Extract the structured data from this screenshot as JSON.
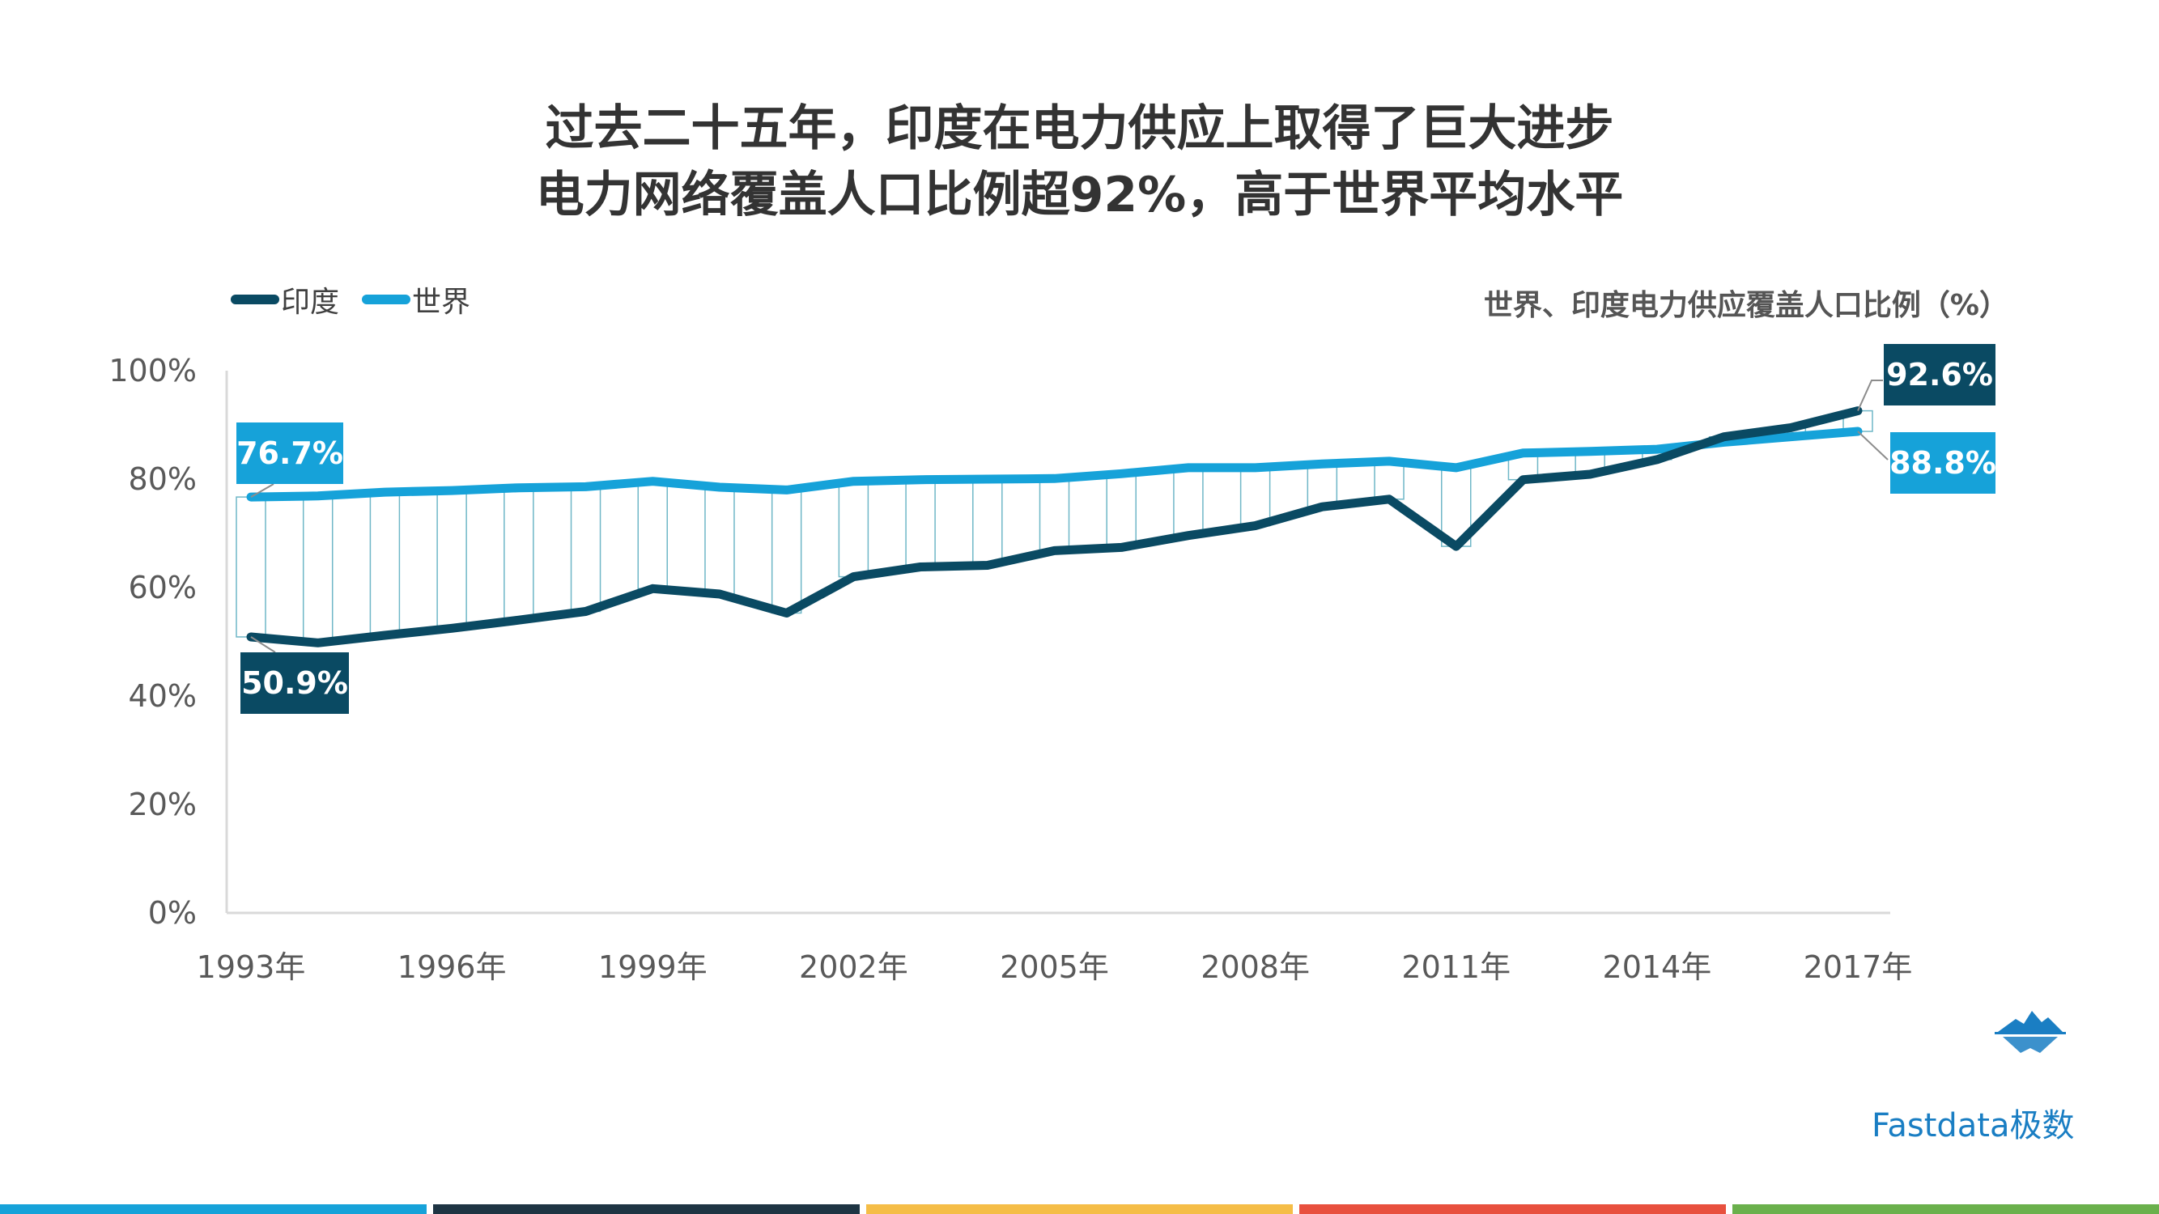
{
  "title": {
    "line1": "过去二十五年，印度在电力供应上取得了巨大进步",
    "line2": "电力网络覆盖人口比例超92%，高于世界平均水平"
  },
  "legend": {
    "india_label": "印度",
    "world_label": "世界"
  },
  "subtitle": "世界、印度电力供应覆盖人口比例（%）",
  "logo": {
    "icon": "iceberg-logo-icon",
    "text": "Fastdata极数"
  },
  "colors": {
    "india": "#0a4a63",
    "world": "#16a2d9",
    "bottom_bars": [
      "#16a2d9",
      "#1e3443",
      "#f5bd47",
      "#e8503e",
      "#6ab04c"
    ]
  },
  "chart_data": {
    "type": "line",
    "x": [
      1993,
      1994,
      1995,
      1996,
      1997,
      1998,
      1999,
      2000,
      2001,
      2002,
      2003,
      2004,
      2005,
      2006,
      2007,
      2008,
      2009,
      2010,
      2011,
      2012,
      2013,
      2014,
      2015,
      2016,
      2017
    ],
    "x_tick_labels": [
      "1993年",
      "1996年",
      "1999年",
      "2002年",
      "2005年",
      "2008年",
      "2011年",
      "2014年",
      "2017年"
    ],
    "y_tick_labels": [
      "0%",
      "20%",
      "40%",
      "60%",
      "80%",
      "100%"
    ],
    "ylim": [
      0,
      100
    ],
    "series": [
      {
        "name": "印度",
        "values": [
          50.9,
          49.8,
          51.2,
          52.5,
          54.0,
          55.6,
          59.8,
          58.8,
          55.3,
          62.0,
          63.8,
          64.1,
          66.8,
          67.4,
          69.6,
          71.4,
          74.9,
          76.3,
          67.6,
          79.9,
          80.9,
          83.6,
          87.8,
          89.5,
          92.6
        ]
      },
      {
        "name": "世界",
        "values": [
          76.7,
          76.9,
          77.6,
          77.9,
          78.4,
          78.6,
          79.6,
          78.5,
          78.0,
          79.6,
          79.9,
          80.0,
          80.1,
          81.0,
          82.1,
          82.1,
          82.8,
          83.3,
          82.1,
          84.8,
          85.1,
          85.5,
          86.8,
          87.8,
          88.8
        ]
      }
    ],
    "data_labels": {
      "india_first": "50.9%",
      "world_first": "76.7%",
      "india_last": "92.6%",
      "world_last": "88.8%"
    },
    "grid": false,
    "legend_position": "top-left"
  }
}
